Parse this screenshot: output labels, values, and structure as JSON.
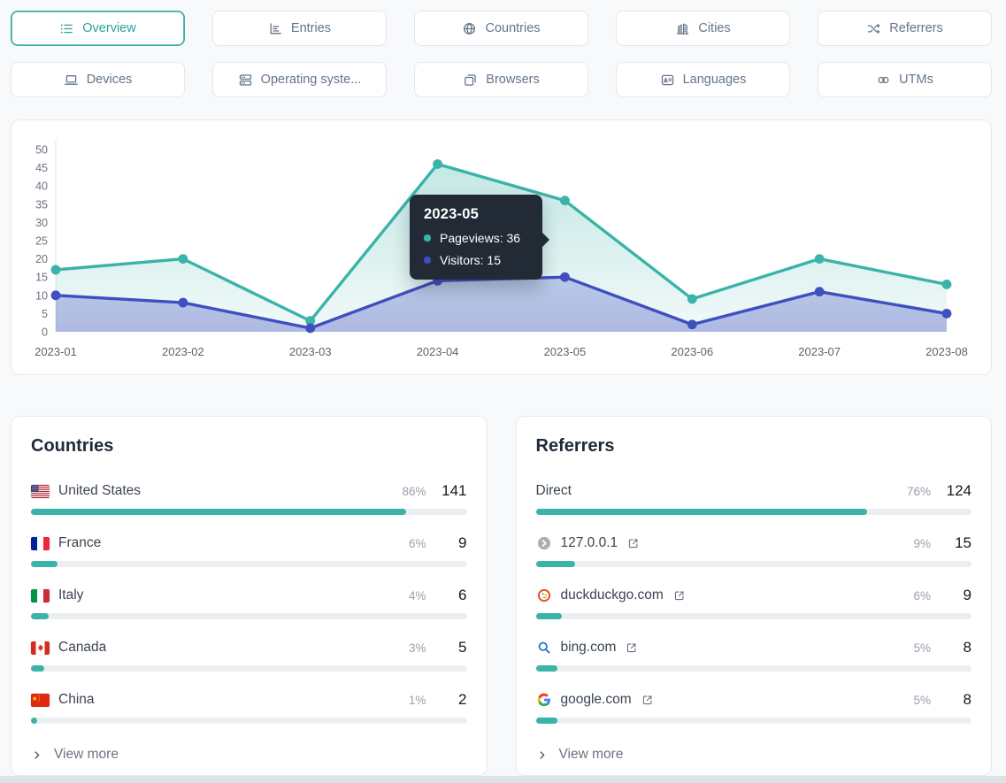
{
  "nav": {
    "tabs": [
      {
        "label": "Overview",
        "icon": "list-icon",
        "active": true
      },
      {
        "label": "Entries",
        "icon": "bar-chart-icon",
        "active": false
      },
      {
        "label": "Countries",
        "icon": "globe-icon",
        "active": false
      },
      {
        "label": "Cities",
        "icon": "buildings-icon",
        "active": false
      },
      {
        "label": "Referrers",
        "icon": "shuffle-icon",
        "active": false
      },
      {
        "label": "Devices",
        "icon": "laptop-icon",
        "active": false
      },
      {
        "label": "Operating syste...",
        "icon": "server-stack-icon",
        "active": false
      },
      {
        "label": "Browsers",
        "icon": "window-stack-icon",
        "active": false
      },
      {
        "label": "Languages",
        "icon": "translate-icon",
        "active": false
      },
      {
        "label": "UTMs",
        "icon": "link-icon",
        "active": false
      }
    ]
  },
  "chart_data": {
    "type": "area",
    "x": [
      "2023-01",
      "2023-02",
      "2023-03",
      "2023-04",
      "2023-05",
      "2023-06",
      "2023-07",
      "2023-08"
    ],
    "series": [
      {
        "name": "Pageviews",
        "color": "#3ab3a8",
        "color_light": "#a9e2da",
        "values": [
          17,
          20,
          3,
          46,
          36,
          9,
          20,
          13
        ]
      },
      {
        "name": "Visitors",
        "color": "#3f4fc0",
        "color_light": "#aab3ec",
        "values": [
          10,
          8,
          1,
          14,
          15,
          2,
          11,
          5
        ]
      }
    ],
    "ylim": [
      0,
      50
    ],
    "ytick_step": 5,
    "grid": false,
    "legend_position": "tooltip-only",
    "tooltip": {
      "title": "2023-05",
      "rows": [
        {
          "series": "Pageviews",
          "value": 36
        },
        {
          "series": "Visitors",
          "value": 15
        }
      ]
    }
  },
  "countries": {
    "title": "Countries",
    "view_more": "View more",
    "rows": [
      {
        "name": "United States",
        "flag": "us-flag",
        "percent": "86%",
        "count": "141",
        "bar": 86
      },
      {
        "name": "France",
        "flag": "fr-flag",
        "percent": "6%",
        "count": "9",
        "bar": 6
      },
      {
        "name": "Italy",
        "flag": "it-flag",
        "percent": "4%",
        "count": "6",
        "bar": 4
      },
      {
        "name": "Canada",
        "flag": "ca-flag",
        "percent": "3%",
        "count": "5",
        "bar": 3
      },
      {
        "name": "China",
        "flag": "cn-flag",
        "percent": "1%",
        "count": "2",
        "bar": 1
      }
    ]
  },
  "referrers": {
    "title": "Referrers",
    "view_more": "View more",
    "rows": [
      {
        "name": "Direct",
        "icon": null,
        "external": false,
        "percent": "76%",
        "count": "124",
        "bar": 76
      },
      {
        "name": "127.0.0.1",
        "icon": "default-favicon",
        "external": true,
        "percent": "9%",
        "count": "15",
        "bar": 9
      },
      {
        "name": "duckduckgo.com",
        "icon": "duckduckgo-favicon",
        "external": true,
        "percent": "6%",
        "count": "9",
        "bar": 6
      },
      {
        "name": "bing.com",
        "icon": "bing-favicon",
        "external": true,
        "percent": "5%",
        "count": "8",
        "bar": 5
      },
      {
        "name": "google.com",
        "icon": "google-favicon",
        "external": true,
        "percent": "5%",
        "count": "8",
        "bar": 5
      }
    ]
  },
  "colors": {
    "accent_teal": "#2ba39a",
    "pageviews_series": "#3ab3a8",
    "visitors_series": "#3f4fc0",
    "bar_fill": "#3ab3a8",
    "bar_track": "#eceff2",
    "tooltip_background": "#212a35",
    "page_background": "#f7f9fa"
  }
}
